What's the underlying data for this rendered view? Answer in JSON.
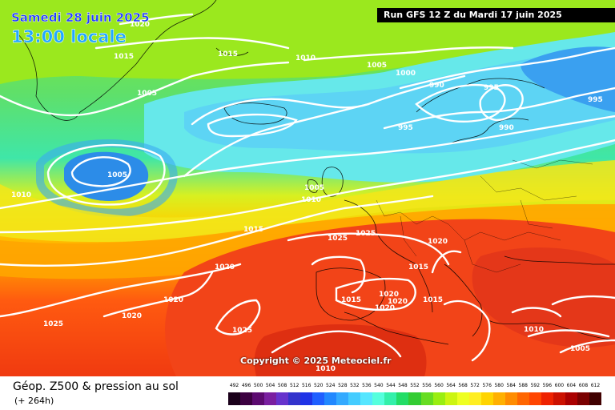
{
  "header": {
    "date_line": "Samedi 28 juin 2025",
    "time_line": "13:00 locale",
    "run_info": "Run GFS 12 Z du Mardi 17 juin 2025"
  },
  "copyright": "Copyright © 2025 Meteociel.fr",
  "legend": {
    "title": "Géop. Z500 & pression au sol",
    "subtitle": "(+ 264h)",
    "scale_values": [
      "492",
      "496",
      "500",
      "504",
      "508",
      "512",
      "516",
      "520",
      "524",
      "528",
      "532",
      "536",
      "540",
      "544",
      "548",
      "552",
      "556",
      "560",
      "564",
      "568",
      "572",
      "576",
      "580",
      "584",
      "588",
      "592",
      "596",
      "600",
      "604",
      "608",
      "612"
    ],
    "scale_colors": [
      "#1a001a",
      "#3c0040",
      "#5c0a70",
      "#7a1fa0",
      "#6633cc",
      "#3333cc",
      "#1f33e6",
      "#1f5fff",
      "#2188ff",
      "#33aaff",
      "#44ccff",
      "#55e6ff",
      "#55ffdd",
      "#33f0aa",
      "#22dd66",
      "#33cc33",
      "#66dd22",
      "#99ee11",
      "#ccf511",
      "#eeff22",
      "#ffee22",
      "#ffd400",
      "#ffb000",
      "#ff8c00",
      "#ff6600",
      "#ff4500",
      "#ee2200",
      "#cc1100",
      "#aa0000",
      "#7a0000",
      "#400000"
    ]
  },
  "isobar_labels": [
    "1020",
    "1015",
    "1015",
    "1010",
    "1005",
    "1000",
    "990",
    "995",
    "995",
    "990",
    "995",
    "1005",
    "1005",
    "1005",
    "1010",
    "1010",
    "1015",
    "1025",
    "1025",
    "1020",
    "1015",
    "1020",
    "1020",
    "1020",
    "1020",
    "1015",
    "1015",
    "1020",
    "1020",
    "1025",
    "1025",
    "1010",
    "1010",
    "1005"
  ]
}
